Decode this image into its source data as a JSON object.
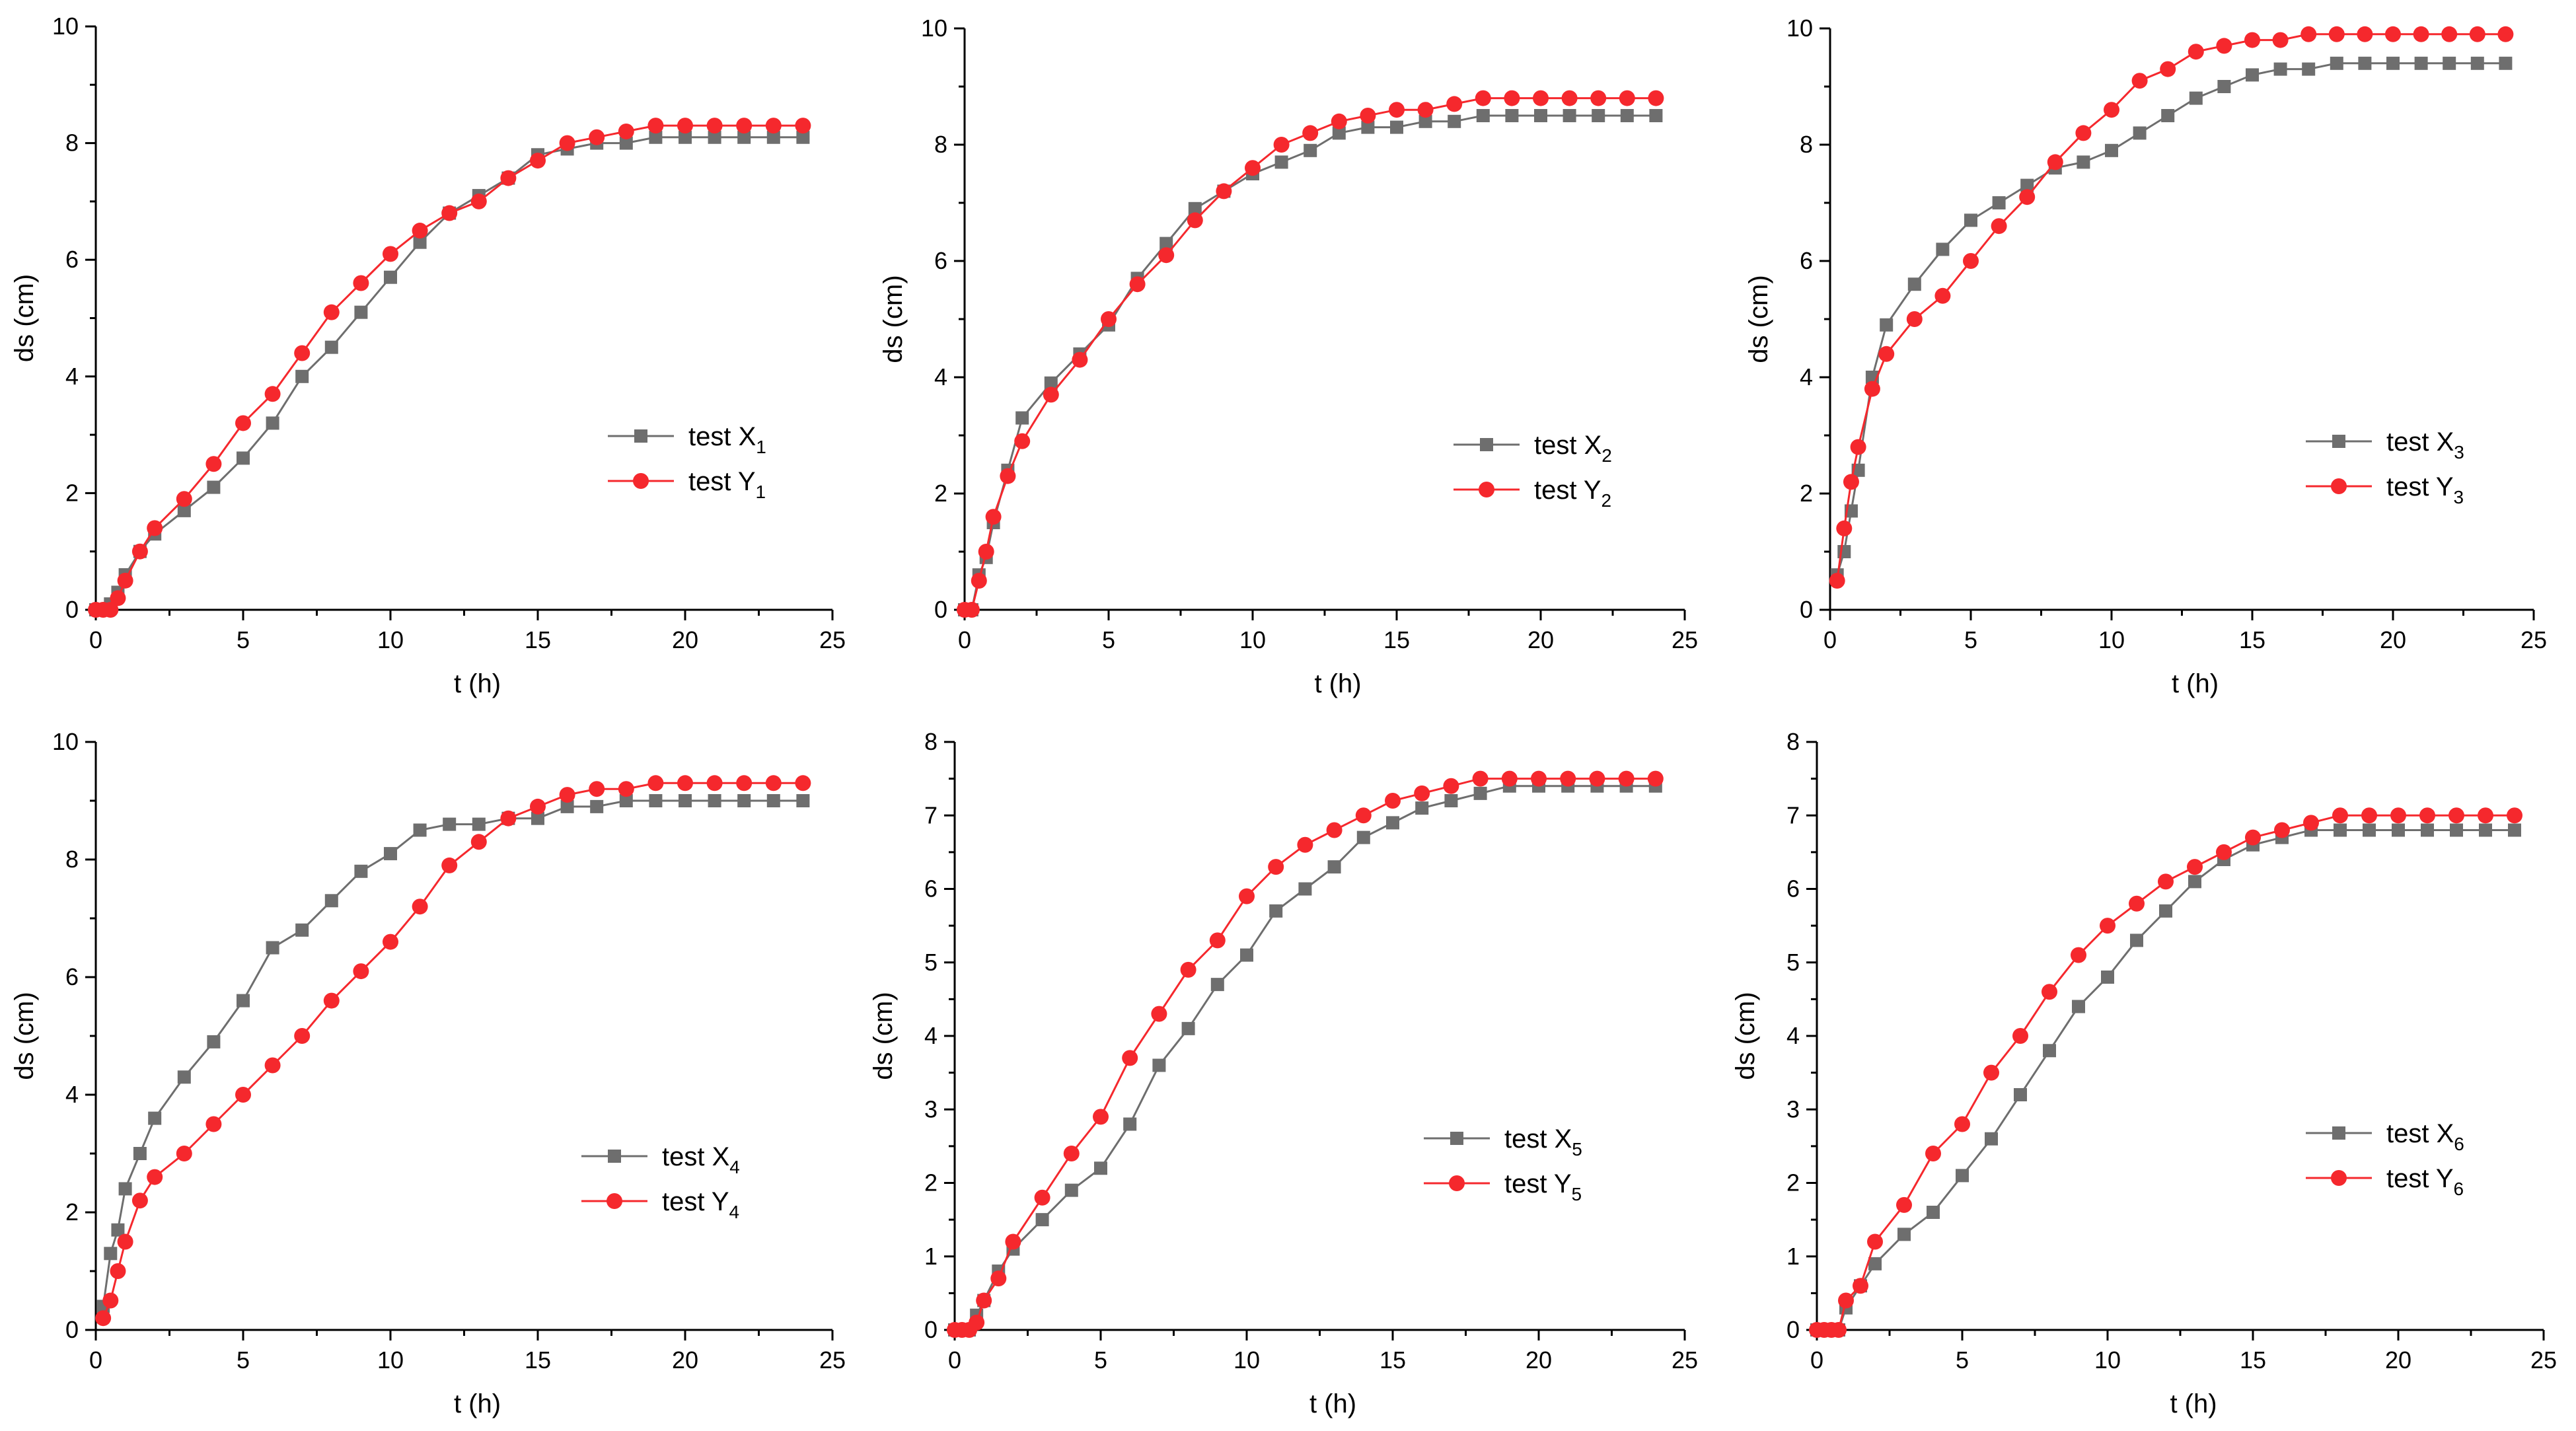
{
  "figure": {
    "panel_count": 6
  },
  "chart_data": [
    {
      "type": "line",
      "title": "",
      "xlabel": "t (h)",
      "ylabel": "ds (cm)",
      "xlim": [
        0,
        25
      ],
      "ylim": [
        0,
        10
      ],
      "xticks": [
        0,
        5,
        10,
        15,
        20,
        25
      ],
      "yticks": [
        0,
        2,
        4,
        6,
        8,
        10
      ],
      "legend_position": "center-right",
      "series": [
        {
          "name": "test X",
          "subscript": "1",
          "color": "#6e6e6e",
          "marker": "square",
          "x": [
            0,
            0.25,
            0.5,
            0.75,
            1,
            1.5,
            2,
            3,
            4,
            5,
            6,
            7,
            8,
            9,
            10,
            11,
            12,
            13,
            14,
            15,
            16,
            17,
            18,
            19,
            20,
            21,
            22,
            23,
            24
          ],
          "y": [
            0,
            0,
            0.1,
            0.3,
            0.6,
            1.0,
            1.3,
            1.7,
            2.1,
            2.6,
            3.2,
            4.0,
            4.5,
            5.1,
            5.7,
            6.3,
            6.8,
            7.1,
            7.4,
            7.8,
            7.9,
            8.0,
            8.0,
            8.1,
            8.1,
            8.1,
            8.1,
            8.1,
            8.1
          ]
        },
        {
          "name": "test Y",
          "subscript": "1",
          "color": "#f5282d",
          "marker": "circle",
          "x": [
            0,
            0.25,
            0.5,
            0.75,
            1,
            1.5,
            2,
            3,
            4,
            5,
            6,
            7,
            8,
            9,
            10,
            11,
            12,
            13,
            14,
            15,
            16,
            17,
            18,
            19,
            20,
            21,
            22,
            23,
            24
          ],
          "y": [
            0,
            0,
            0,
            0.2,
            0.5,
            1.0,
            1.4,
            1.9,
            2.5,
            3.2,
            3.7,
            4.4,
            5.1,
            5.6,
            6.1,
            6.5,
            6.8,
            7.0,
            7.4,
            7.7,
            8.0,
            8.1,
            8.2,
            8.3,
            8.3,
            8.3,
            8.3,
            8.3,
            8.3
          ]
        }
      ]
    },
    {
      "type": "line",
      "title": "",
      "xlabel": "t (h)",
      "ylabel": "ds (cm)",
      "xlim": [
        0,
        25
      ],
      "ylim": [
        0,
        10
      ],
      "xticks": [
        0,
        5,
        10,
        15,
        20,
        25
      ],
      "yticks": [
        0,
        2,
        4,
        6,
        8,
        10
      ],
      "legend_position": "center-right",
      "series": [
        {
          "name": "test X",
          "subscript": "2",
          "color": "#6e6e6e",
          "marker": "square",
          "x": [
            0,
            0.25,
            0.5,
            0.75,
            1,
            1.5,
            2,
            3,
            4,
            5,
            6,
            7,
            8,
            9,
            10,
            11,
            12,
            13,
            14,
            15,
            16,
            17,
            18,
            19,
            20,
            21,
            22,
            23,
            24
          ],
          "y": [
            0,
            0,
            0.6,
            0.9,
            1.5,
            2.4,
            3.3,
            3.9,
            4.4,
            4.9,
            5.7,
            6.3,
            6.9,
            7.2,
            7.5,
            7.7,
            7.9,
            8.2,
            8.3,
            8.3,
            8.4,
            8.4,
            8.5,
            8.5,
            8.5,
            8.5,
            8.5,
            8.5,
            8.5
          ]
        },
        {
          "name": "test Y",
          "subscript": "2",
          "color": "#f5282d",
          "marker": "circle",
          "x": [
            0,
            0.25,
            0.5,
            0.75,
            1,
            1.5,
            2,
            3,
            4,
            5,
            6,
            7,
            8,
            9,
            10,
            11,
            12,
            13,
            14,
            15,
            16,
            17,
            18,
            19,
            20,
            21,
            22,
            23,
            24
          ],
          "y": [
            0,
            0,
            0.5,
            1.0,
            1.6,
            2.3,
            2.9,
            3.7,
            4.3,
            5.0,
            5.6,
            6.1,
            6.7,
            7.2,
            7.6,
            8.0,
            8.2,
            8.4,
            8.5,
            8.6,
            8.6,
            8.7,
            8.8,
            8.8,
            8.8,
            8.8,
            8.8,
            8.8,
            8.8
          ]
        }
      ]
    },
    {
      "type": "line",
      "title": "",
      "xlabel": "t (h)",
      "ylabel": "ds (cm)",
      "xlim": [
        0,
        25
      ],
      "ylim": [
        0,
        10
      ],
      "xticks": [
        0,
        5,
        10,
        15,
        20,
        25
      ],
      "yticks": [
        0,
        2,
        4,
        6,
        8,
        10
      ],
      "legend_position": "center-right",
      "series": [
        {
          "name": "test X",
          "subscript": "3",
          "color": "#6e6e6e",
          "marker": "square",
          "x": [
            0.25,
            0.5,
            0.75,
            1,
            1.5,
            2,
            3,
            4,
            5,
            6,
            7,
            8,
            9,
            10,
            11,
            12,
            13,
            14,
            15,
            16,
            17,
            18,
            19,
            20,
            21,
            22,
            23,
            24
          ],
          "y": [
            0.6,
            1.0,
            1.7,
            2.4,
            4.0,
            4.9,
            5.6,
            6.2,
            6.7,
            7.0,
            7.3,
            7.6,
            7.7,
            7.9,
            8.2,
            8.5,
            8.8,
            9.0,
            9.2,
            9.3,
            9.3,
            9.4,
            9.4,
            9.4,
            9.4,
            9.4,
            9.4,
            9.4
          ]
        },
        {
          "name": "test Y",
          "subscript": "3",
          "color": "#f5282d",
          "marker": "circle",
          "x": [
            0.25,
            0.5,
            0.75,
            1,
            1.5,
            2,
            3,
            4,
            5,
            6,
            7,
            8,
            9,
            10,
            11,
            12,
            13,
            14,
            15,
            16,
            17,
            18,
            19,
            20,
            21,
            22,
            23,
            24
          ],
          "y": [
            0.5,
            1.4,
            2.2,
            2.8,
            3.8,
            4.4,
            5.0,
            5.4,
            6.0,
            6.6,
            7.1,
            7.7,
            8.2,
            8.6,
            9.1,
            9.3,
            9.6,
            9.7,
            9.8,
            9.8,
            9.9,
            9.9,
            9.9,
            9.9,
            9.9,
            9.9,
            9.9,
            9.9
          ]
        }
      ]
    },
    {
      "type": "line",
      "title": "",
      "xlabel": "t (h)",
      "ylabel": "ds (cm)",
      "xlim": [
        0,
        25
      ],
      "ylim": [
        0,
        10
      ],
      "xticks": [
        0,
        5,
        10,
        15,
        20,
        25
      ],
      "yticks": [
        0,
        2,
        4,
        6,
        8,
        10
      ],
      "legend_position": "center-right",
      "series": [
        {
          "name": "test X",
          "subscript": "4",
          "color": "#6e6e6e",
          "marker": "square",
          "x": [
            0.25,
            0.5,
            0.75,
            1,
            1.5,
            2,
            3,
            4,
            5,
            6,
            7,
            8,
            9,
            10,
            11,
            12,
            13,
            14,
            15,
            16,
            17,
            18,
            19,
            20,
            21,
            22,
            23,
            24
          ],
          "y": [
            0.4,
            1.3,
            1.7,
            2.4,
            3.0,
            3.6,
            4.3,
            4.9,
            5.6,
            6.5,
            6.8,
            7.3,
            7.8,
            8.1,
            8.5,
            8.6,
            8.6,
            8.7,
            8.7,
            8.9,
            8.9,
            9.0,
            9.0,
            9.0,
            9.0,
            9.0,
            9.0,
            9.0
          ]
        },
        {
          "name": "test Y",
          "subscript": "4",
          "color": "#f5282d",
          "marker": "circle",
          "x": [
            0.25,
            0.5,
            0.75,
            1,
            1.5,
            2,
            3,
            4,
            5,
            6,
            7,
            8,
            9,
            10,
            11,
            12,
            13,
            14,
            15,
            16,
            17,
            18,
            19,
            20,
            21,
            22,
            23,
            24
          ],
          "y": [
            0.2,
            0.5,
            1.0,
            1.5,
            2.2,
            2.6,
            3.0,
            3.5,
            4.0,
            4.5,
            5.0,
            5.6,
            6.1,
            6.6,
            7.2,
            7.9,
            8.3,
            8.7,
            8.9,
            9.1,
            9.2,
            9.2,
            9.3,
            9.3,
            9.3,
            9.3,
            9.3,
            9.3
          ]
        }
      ]
    },
    {
      "type": "line",
      "title": "",
      "xlabel": "t (h)",
      "ylabel": "ds (cm)",
      "xlim": [
        0,
        25
      ],
      "ylim": [
        0,
        8
      ],
      "xticks": [
        0,
        5,
        10,
        15,
        20,
        25
      ],
      "yticks": [
        0,
        1,
        2,
        3,
        4,
        5,
        6,
        7,
        8
      ],
      "legend_position": "center-right",
      "series": [
        {
          "name": "test X",
          "subscript": "5",
          "color": "#6e6e6e",
          "marker": "square",
          "x": [
            0,
            0.25,
            0.5,
            0.75,
            1,
            1.5,
            2,
            3,
            4,
            5,
            6,
            7,
            8,
            9,
            10,
            11,
            12,
            13,
            14,
            15,
            16,
            17,
            18,
            19,
            20,
            21,
            22,
            23,
            24
          ],
          "y": [
            0,
            0,
            0,
            0.2,
            0.4,
            0.8,
            1.1,
            1.5,
            1.9,
            2.2,
            2.8,
            3.6,
            4.1,
            4.7,
            5.1,
            5.7,
            6.0,
            6.3,
            6.7,
            6.9,
            7.1,
            7.2,
            7.3,
            7.4,
            7.4,
            7.4,
            7.4,
            7.4,
            7.4
          ]
        },
        {
          "name": "test Y",
          "subscript": "5",
          "color": "#f5282d",
          "marker": "circle",
          "x": [
            0,
            0.25,
            0.5,
            0.75,
            1,
            1.5,
            2,
            3,
            4,
            5,
            6,
            7,
            8,
            9,
            10,
            11,
            12,
            13,
            14,
            15,
            16,
            17,
            18,
            19,
            20,
            21,
            22,
            23,
            24
          ],
          "y": [
            0,
            0,
            0,
            0.1,
            0.4,
            0.7,
            1.2,
            1.8,
            2.4,
            2.9,
            3.7,
            4.3,
            4.9,
            5.3,
            5.9,
            6.3,
            6.6,
            6.8,
            7.0,
            7.2,
            7.3,
            7.4,
            7.5,
            7.5,
            7.5,
            7.5,
            7.5,
            7.5,
            7.5
          ]
        }
      ]
    },
    {
      "type": "line",
      "title": "",
      "xlabel": "t (h)",
      "ylabel": "ds (cm)",
      "xlim": [
        0,
        25
      ],
      "ylim": [
        0,
        8
      ],
      "xticks": [
        0,
        5,
        10,
        15,
        20,
        25
      ],
      "yticks": [
        0,
        1,
        2,
        3,
        4,
        5,
        6,
        7,
        8
      ],
      "legend_position": "center-right",
      "series": [
        {
          "name": "test X",
          "subscript": "6",
          "color": "#6e6e6e",
          "marker": "square",
          "x": [
            0,
            0.25,
            0.5,
            0.75,
            1,
            1.5,
            2,
            3,
            4,
            5,
            6,
            7,
            8,
            9,
            10,
            11,
            12,
            13,
            14,
            15,
            16,
            17,
            18,
            19,
            20,
            21,
            22,
            23,
            24
          ],
          "y": [
            0,
            0,
            0,
            0,
            0.3,
            0.6,
            0.9,
            1.3,
            1.6,
            2.1,
            2.6,
            3.2,
            3.8,
            4.4,
            4.8,
            5.3,
            5.7,
            6.1,
            6.4,
            6.6,
            6.7,
            6.8,
            6.8,
            6.8,
            6.8,
            6.8,
            6.8,
            6.8,
            6.8
          ]
        },
        {
          "name": "test Y",
          "subscript": "6",
          "color": "#f5282d",
          "marker": "circle",
          "x": [
            0,
            0.25,
            0.5,
            0.75,
            1,
            1.5,
            2,
            3,
            4,
            5,
            6,
            7,
            8,
            9,
            10,
            11,
            12,
            13,
            14,
            15,
            16,
            17,
            18,
            19,
            20,
            21,
            22,
            23,
            24
          ],
          "y": [
            0,
            0,
            0,
            0,
            0.4,
            0.6,
            1.2,
            1.7,
            2.4,
            2.8,
            3.5,
            4.0,
            4.6,
            5.1,
            5.5,
            5.8,
            6.1,
            6.3,
            6.5,
            6.7,
            6.8,
            6.9,
            7.0,
            7.0,
            7.0,
            7.0,
            7.0,
            7.0,
            7.0
          ]
        }
      ]
    }
  ]
}
